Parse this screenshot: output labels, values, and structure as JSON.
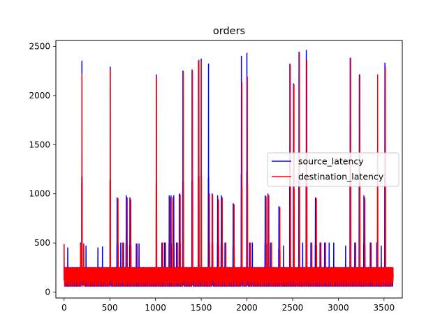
{
  "chart_data": {
    "type": "line",
    "title": "orders",
    "xlabel": "",
    "ylabel": "",
    "xlim": [
      -90,
      3700
    ],
    "ylim": [
      -60,
      2560
    ],
    "xticks": [
      0,
      500,
      1000,
      1500,
      2000,
      2500,
      3000,
      3500
    ],
    "yticks": [
      0,
      500,
      1000,
      1500,
      2000,
      2500
    ],
    "grid": false,
    "legend_position": "center-right",
    "x_count": 3601,
    "baseline": {
      "pattern": [
        150,
        230,
        110,
        250,
        180,
        95,
        240,
        130,
        210,
        160,
        70,
        245,
        120,
        200,
        175,
        100,
        235,
        145,
        60,
        220
      ]
    },
    "series": [
      {
        "name": "source_latency",
        "color": "#0000ff",
        "spikes": [
          [
            0,
            490
          ],
          [
            40,
            450
          ],
          [
            180,
            500
          ],
          [
            195,
            2350
          ],
          [
            215,
            490
          ],
          [
            240,
            470
          ],
          [
            370,
            450
          ],
          [
            420,
            460
          ],
          [
            505,
            2290
          ],
          [
            580,
            960
          ],
          [
            620,
            500
          ],
          [
            650,
            500
          ],
          [
            680,
            980
          ],
          [
            720,
            960
          ],
          [
            790,
            490
          ],
          [
            820,
            490
          ],
          [
            1010,
            2210
          ],
          [
            1070,
            500
          ],
          [
            1100,
            500
          ],
          [
            1150,
            980
          ],
          [
            1170,
            980
          ],
          [
            1200,
            980
          ],
          [
            1230,
            500
          ],
          [
            1260,
            1000
          ],
          [
            1300,
            2250
          ],
          [
            1400,
            2260
          ],
          [
            1470,
            2350
          ],
          [
            1500,
            2370
          ],
          [
            1580,
            2320
          ],
          [
            1620,
            1000
          ],
          [
            1680,
            980
          ],
          [
            1720,
            980
          ],
          [
            1760,
            500
          ],
          [
            1850,
            900
          ],
          [
            1940,
            2400
          ],
          [
            2000,
            2430
          ],
          [
            2030,
            500
          ],
          [
            2060,
            500
          ],
          [
            2200,
            980
          ],
          [
            2230,
            1000
          ],
          [
            2260,
            500
          ],
          [
            2350,
            870
          ],
          [
            2400,
            470
          ],
          [
            2470,
            2320
          ],
          [
            2510,
            2120
          ],
          [
            2570,
            2440
          ],
          [
            2610,
            500
          ],
          [
            2650,
            2460
          ],
          [
            2700,
            500
          ],
          [
            2750,
            960
          ],
          [
            2800,
            500
          ],
          [
            2850,
            500
          ],
          [
            2900,
            500
          ],
          [
            2950,
            500
          ],
          [
            3080,
            470
          ],
          [
            3130,
            2380
          ],
          [
            3180,
            500
          ],
          [
            3230,
            2210
          ],
          [
            3280,
            980
          ],
          [
            3350,
            500
          ],
          [
            3420,
            500
          ],
          [
            3470,
            470
          ],
          [
            3510,
            2330
          ],
          [
            3560,
            250
          ]
        ]
      },
      {
        "name": "destination_latency",
        "color": "#ff0000",
        "spikes": [
          [
            0,
            490
          ],
          [
            180,
            490
          ],
          [
            195,
            2220
          ],
          [
            215,
            480
          ],
          [
            505,
            2260
          ],
          [
            590,
            950
          ],
          [
            640,
            500
          ],
          [
            690,
            960
          ],
          [
            730,
            940
          ],
          [
            800,
            490
          ],
          [
            1010,
            2190
          ],
          [
            1080,
            500
          ],
          [
            1110,
            500
          ],
          [
            1160,
            960
          ],
          [
            1190,
            960
          ],
          [
            1240,
            500
          ],
          [
            1270,
            990
          ],
          [
            1305,
            2240
          ],
          [
            1405,
            2250
          ],
          [
            1475,
            2360
          ],
          [
            1500,
            2340
          ],
          [
            1590,
            1000
          ],
          [
            1625,
            990
          ],
          [
            1690,
            940
          ],
          [
            1730,
            960
          ],
          [
            1770,
            500
          ],
          [
            1860,
            890
          ],
          [
            1945,
            2130
          ],
          [
            2005,
            2190
          ],
          [
            2040,
            500
          ],
          [
            2210,
            970
          ],
          [
            2240,
            980
          ],
          [
            2270,
            500
          ],
          [
            2360,
            860
          ],
          [
            2475,
            2310
          ],
          [
            2515,
            2110
          ],
          [
            2575,
            2440
          ],
          [
            2655,
            2360
          ],
          [
            2710,
            500
          ],
          [
            2760,
            950
          ],
          [
            2810,
            500
          ],
          [
            2860,
            500
          ],
          [
            3135,
            2380
          ],
          [
            3190,
            500
          ],
          [
            3235,
            2210
          ],
          [
            3290,
            960
          ],
          [
            3360,
            500
          ],
          [
            3430,
            2210
          ],
          [
            3515,
            2290
          ],
          [
            3570,
            250
          ]
        ]
      }
    ]
  }
}
